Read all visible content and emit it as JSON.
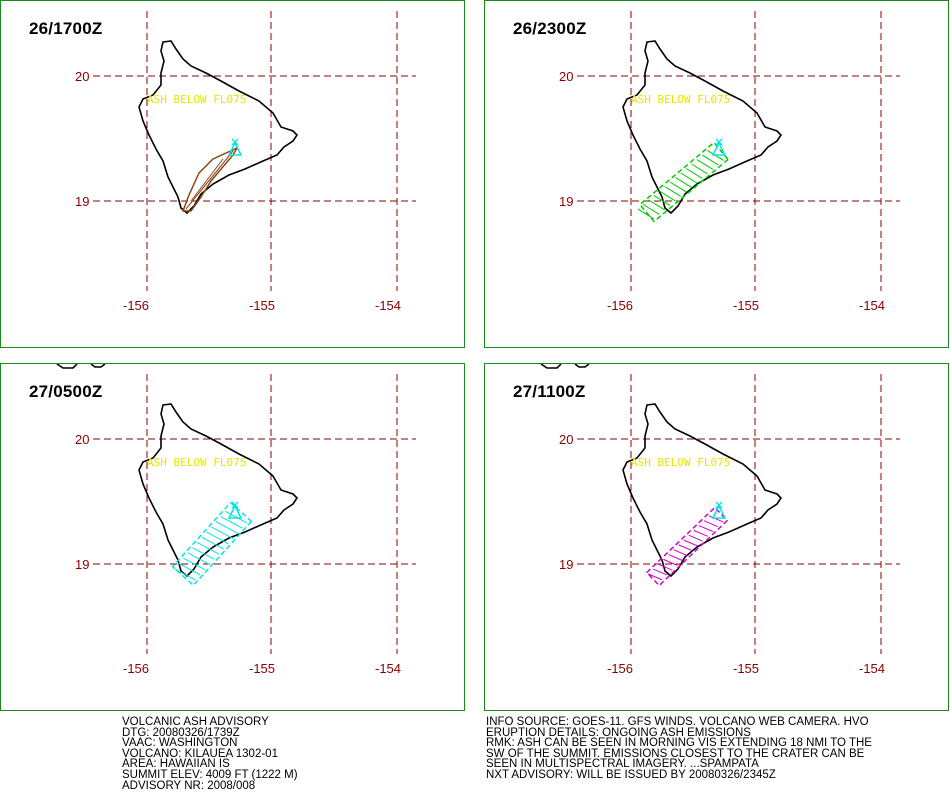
{
  "panels": [
    {
      "time": "26/1700Z",
      "ash_label": "ASH BELOW FL075",
      "ash_color": "#8b4513",
      "style": "solid"
    },
    {
      "time": "26/2300Z",
      "ash_label": "ASH BELOW FL075",
      "ash_color": "#00cc00",
      "style": "hatched"
    },
    {
      "time": "27/0500Z",
      "ash_label": "ASH BELOW FL075",
      "ash_color": "#00e5e5",
      "style": "hatched"
    },
    {
      "time": "27/1100Z",
      "ash_label": "ASH BELOW FL075",
      "ash_color": "#d000d0",
      "style": "hatched"
    }
  ],
  "map": {
    "lat_labels": [
      "20",
      "19"
    ],
    "lon_labels": [
      "-156",
      "-155",
      "-154"
    ],
    "grid_color": "#8b0000",
    "coast_color": "#000000",
    "volcano_marker_color": "#00e5e5",
    "border_color": "#1a8a1a"
  },
  "advisory_left": [
    "VOLCANIC ASH ADVISORY",
    "DTG: 20080326/1739Z",
    "VAAC: WASHINGTON",
    "VOLCANO: KILAUEA 1302-01",
    "AREA: HAWAIIAN IS",
    "SUMMIT ELEV: 4009 FT (1222 M)",
    "ADVISORY NR: 2008/008"
  ],
  "advisory_right": [
    "INFO SOURCE: GOES-11. GFS WINDS. VOLCANO WEB CAMERA. HVO",
    "ERUPTION DETAILS: ONGOING ASH EMISSIONS",
    "RMK: ASH CAN BE SEEN IN MORNING VIS EXTENDING 18 NMI TO THE",
    "SW OF THE SUMMIT. EMISSIONS CLOSEST TO THE CRATER CAN BE",
    "SEEN IN MULTISPECTRAL IMAGERY. ...SPAMPATA",
    "NXT ADVISORY: WILL BE ISSUED BY 20080326/2345Z"
  ]
}
